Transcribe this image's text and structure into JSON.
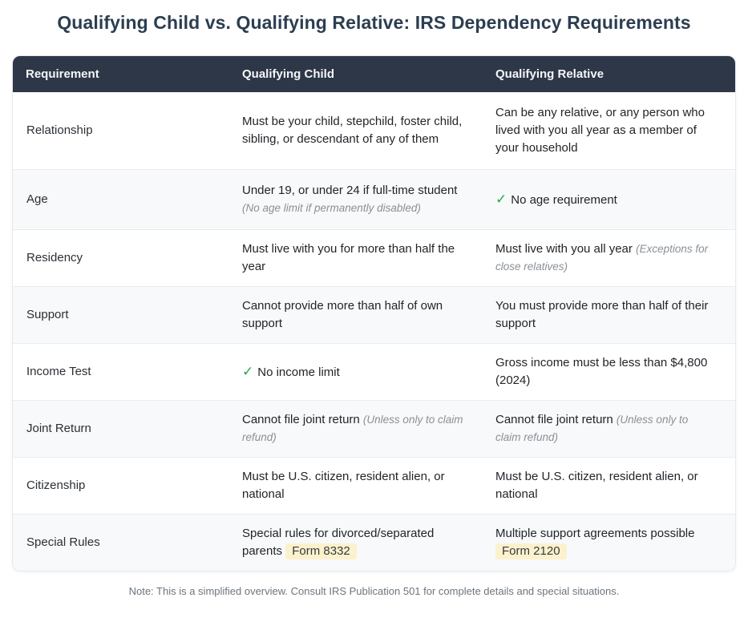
{
  "title": "Qualifying Child vs. Qualifying Relative: IRS Dependency Requirements",
  "footnote": "Note: This is a simplified overview. Consult IRS Publication 501 for complete details and special situations.",
  "icons": {
    "check": "✓"
  },
  "colors": {
    "title_text": "#2c3e50",
    "header_bg": "#2d3748",
    "header_text": "#f5f6f8",
    "row_alt_bg": "#f8f9fa",
    "row_divider": "#e9ecef",
    "body_text": "#212529",
    "note_text": "#8a9097",
    "check_green": "#28a745",
    "badge_bg": "#fcf1cd",
    "footnote_text": "#6c757d"
  },
  "table": {
    "headers": [
      "Requirement",
      "Qualifying Child",
      "Qualifying Relative"
    ],
    "rows": [
      {
        "requirement": "Relationship",
        "child": {
          "text": "Must be your child, stepchild, foster child, sibling, or descendant of any of them"
        },
        "relative": {
          "text": "Can be any relative, or any person who lived with you all year as a member of your household"
        }
      },
      {
        "requirement": "Age",
        "child": {
          "text": "Under 19, or under 24 if full-time student",
          "note": "(No age limit if permanently disabled)"
        },
        "relative": {
          "has_check": true,
          "text": "No age requirement"
        }
      },
      {
        "requirement": "Residency",
        "child": {
          "text": "Must live with you for more than half the year"
        },
        "relative": {
          "text": "Must live with you all year",
          "note": "(Exceptions for close relatives)"
        }
      },
      {
        "requirement": "Support",
        "child": {
          "text": "Cannot provide more than half of own support"
        },
        "relative": {
          "text": "You must provide more than half of their support"
        }
      },
      {
        "requirement": "Income Test",
        "child": {
          "has_check": true,
          "text": "No income limit"
        },
        "relative": {
          "text": "Gross income must be less than $4,800 (2024)"
        }
      },
      {
        "requirement": "Joint Return",
        "child": {
          "text": "Cannot file joint return",
          "note": "(Unless only to claim refund)"
        },
        "relative": {
          "text": "Cannot file joint return",
          "note": "(Unless only to claim refund)"
        }
      },
      {
        "requirement": "Citizenship",
        "child": {
          "text": "Must be U.S. citizen, resident alien, or national"
        },
        "relative": {
          "text": "Must be U.S. citizen, resident alien, or national"
        }
      },
      {
        "requirement": "Special Rules",
        "child": {
          "text": "Special rules for divorced/separated parents",
          "badge": "Form 8332"
        },
        "relative": {
          "text": "Multiple support agreements possible",
          "badge": "Form 2120"
        }
      }
    ]
  },
  "chart_data": {
    "type": "table",
    "title": "Qualifying Child vs. Qualifying Relative: IRS Dependency Requirements",
    "columns": [
      "Requirement",
      "Qualifying Child",
      "Qualifying Relative"
    ],
    "rows": [
      [
        "Relationship",
        "Must be your child, stepchild, foster child, sibling, or descendant of any of them",
        "Can be any relative, or any person who lived with you all year as a member of your household"
      ],
      [
        "Age",
        "Under 19, or under 24 if full-time student (No age limit if permanently disabled)",
        "✓ No age requirement"
      ],
      [
        "Residency",
        "Must live with you for more than half the year",
        "Must live with you all year (Exceptions for close relatives)"
      ],
      [
        "Support",
        "Cannot provide more than half of own support",
        "You must provide more than half of their support"
      ],
      [
        "Income Test",
        "✓ No income limit",
        "Gross income must be less than $4,800 (2024)"
      ],
      [
        "Joint Return",
        "Cannot file joint return (Unless only to claim refund)",
        "Cannot file joint return (Unless only to claim refund)"
      ],
      [
        "Citizenship",
        "Must be U.S. citizen, resident alien, or national",
        "Must be U.S. citizen, resident alien, or national"
      ],
      [
        "Special Rules",
        "Special rules for divorced/separated parents [Form 8332]",
        "Multiple support agreements possible [Form 2120]"
      ]
    ],
    "footnote": "Note: This is a simplified overview. Consult IRS Publication 501 for complete details and special situations.",
    "layout": {
      "alternating_row_shading": true,
      "header_style": "dark",
      "grid": "horizontal-dividers-only"
    }
  }
}
